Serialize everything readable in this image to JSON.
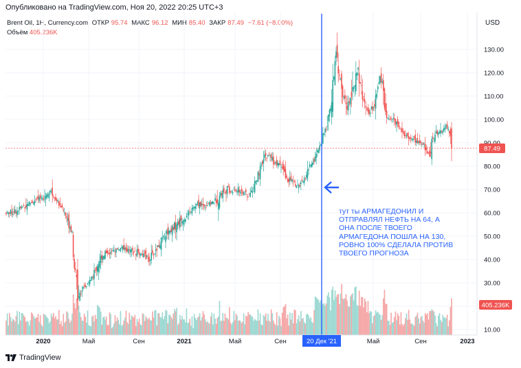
{
  "header": {
    "published": "Опубликовано на TradingView.com, Ноя 20, 2022 20:25 UTC+3"
  },
  "legend": {
    "symbol": "Brent Oil, 1H, Currency.com",
    "open_label": "ОТКР",
    "open": "95.74",
    "high_label": "МАКС",
    "high": "96.12",
    "low_label": "МИН",
    "low": "85.40",
    "close_label": "ЗАКР",
    "close": "87.49",
    "change": "−7.61 (−8.00%)",
    "volume_label": "Объём",
    "volume": "405.236K"
  },
  "price_axis": {
    "currency": "USD",
    "last_price_badge": "87.49",
    "volume_badge": "405.236K"
  },
  "annotation": {
    "text": "тут ты АРМАГЕДОНИЛ И\nОТПРАВЛЯЛ НЕФТЬ НА 64, А\nОНА ПОСЛЕ ТВОЕГО\nАРМАГЕДОНА ПОШЛА НА 130,\nРОВНО 100% СДЕЛАЛА ПРОТИВ\nТВОЕГО ПРОГНОЗА"
  },
  "crosshair": {
    "date_label": "20 Дек '21"
  },
  "footer": {
    "brand": "TradingView"
  },
  "colors": {
    "up": "#26a69a",
    "down": "#ef5350",
    "volume_up": "#9fd9d3",
    "volume_down": "#f5a9a9",
    "crosshair": "#2962ff",
    "annotation": "#2962ff"
  },
  "chart_data": {
    "type": "candlestick",
    "title": "Brent Oil, 1H, Currency.com",
    "ylabel": "USD",
    "ylim": [
      7,
      138
    ],
    "y_ticks": [
      "10.00",
      "20.00",
      "30.00",
      "40.00",
      "50.00",
      "60.00",
      "70.00",
      "80.00",
      "90.00",
      "100.00",
      "110.00",
      "120.00",
      "130.00"
    ],
    "y_tick_values": [
      10,
      20,
      30,
      40,
      50,
      60,
      70,
      80,
      90,
      100,
      110,
      120,
      130
    ],
    "x_tick_labels": [
      "2020",
      "Май",
      "Сен",
      "2021",
      "Май",
      "Сен",
      "Май",
      "Сен",
      "2023"
    ],
    "x_ticks_bold": [
      "2020",
      "2021",
      "2023"
    ],
    "crosshair_date": "20 Дек '21",
    "last_price": 87.49,
    "close_trend": [
      [
        0,
        60
      ],
      [
        10,
        61
      ],
      [
        20,
        64
      ],
      [
        30,
        66
      ],
      [
        40,
        69
      ],
      [
        45,
        66
      ],
      [
        50,
        63
      ],
      [
        55,
        58
      ],
      [
        60,
        52
      ],
      [
        62,
        38
      ],
      [
        65,
        26
      ],
      [
        70,
        27
      ],
      [
        75,
        30
      ],
      [
        80,
        34
      ],
      [
        85,
        40
      ],
      [
        90,
        43
      ],
      [
        95,
        43
      ],
      [
        100,
        44
      ],
      [
        105,
        45
      ],
      [
        110,
        44
      ],
      [
        115,
        43
      ],
      [
        120,
        43
      ],
      [
        125,
        42
      ],
      [
        130,
        40
      ],
      [
        135,
        43
      ],
      [
        140,
        47
      ],
      [
        145,
        51
      ],
      [
        150,
        53
      ],
      [
        155,
        55
      ],
      [
        160,
        57
      ],
      [
        165,
        59
      ],
      [
        170,
        62
      ],
      [
        175,
        64
      ],
      [
        180,
        63
      ],
      [
        185,
        64
      ],
      [
        190,
        65
      ],
      [
        195,
        68
      ],
      [
        200,
        70
      ],
      [
        205,
        69
      ],
      [
        210,
        70
      ],
      [
        215,
        69
      ],
      [
        220,
        67
      ],
      [
        225,
        71
      ],
      [
        230,
        77
      ],
      [
        235,
        84
      ],
      [
        240,
        84
      ],
      [
        245,
        81
      ],
      [
        250,
        80
      ],
      [
        255,
        74
      ],
      [
        260,
        74
      ],
      [
        265,
        71
      ],
      [
        270,
        73
      ],
      [
        275,
        79
      ],
      [
        280,
        83
      ],
      [
        285,
        88
      ],
      [
        290,
        95
      ],
      [
        295,
        105
      ],
      [
        298,
        118
      ],
      [
        300,
        128
      ],
      [
        305,
        113
      ],
      [
        310,
        104
      ],
      [
        315,
        114
      ],
      [
        320,
        121
      ],
      [
        325,
        108
      ],
      [
        330,
        103
      ],
      [
        335,
        106
      ],
      [
        340,
        118
      ],
      [
        342,
        117
      ],
      [
        345,
        101
      ],
      [
        350,
        100
      ],
      [
        355,
        99
      ],
      [
        360,
        95
      ],
      [
        365,
        92
      ],
      [
        370,
        92
      ],
      [
        375,
        90
      ],
      [
        380,
        89
      ],
      [
        385,
        85
      ],
      [
        390,
        95
      ],
      [
        395,
        94
      ],
      [
        400,
        97
      ],
      [
        403,
        95
      ],
      [
        405,
        87
      ]
    ],
    "volume_ylim": [
      0,
      300
    ],
    "volume_note": "Volume histogram under price; badge 405.236K"
  }
}
